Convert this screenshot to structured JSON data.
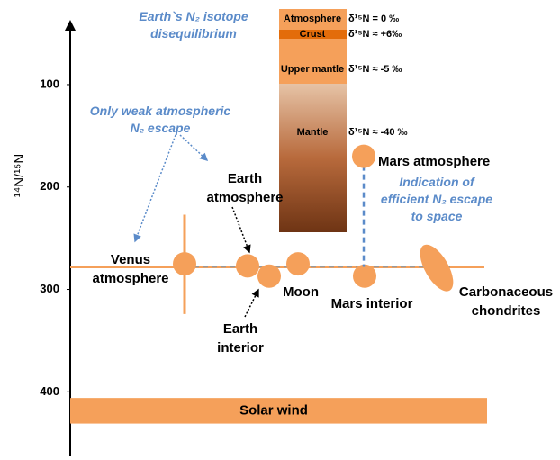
{
  "chart_data": {
    "type": "isotope-diagram",
    "y_label": "¹⁴N/¹⁵N",
    "ylim": [
      35,
      463
    ],
    "yticks": [
      100,
      200,
      300,
      400
    ],
    "reference": 278,
    "color": "#f5a05a",
    "points": [
      {
        "label": [
          "Venus",
          "atmosphere"
        ],
        "value": 275,
        "range": [
          227,
          324
        ]
      },
      {
        "label": [
          "Earth",
          "atmosphere"
        ],
        "value": 277
      },
      {
        "label": [
          "Earth",
          "interior"
        ],
        "value": 287
      },
      {
        "label": [
          "Moon"
        ],
        "value": 275
      },
      {
        "label": [
          "Mars interior"
        ],
        "value": 287
      },
      {
        "label": [
          "Mars atmosphere"
        ],
        "value": 170
      },
      {
        "label": [
          "Carbonaceous",
          "chondrites"
        ],
        "value": 279
      }
    ],
    "band": {
      "label": "Solar wind",
      "range": [
        406,
        431
      ]
    },
    "layers": [
      {
        "name": "Atmosphere",
        "label": "δ¹⁵N = 0 ‰"
      },
      {
        "name": "Crust",
        "label": "δ¹⁵N ≈ +6‰"
      },
      {
        "name": "Upper mantle",
        "label": "δ¹⁵N ≈ -5 ‰"
      },
      {
        "name": "Mantle",
        "label": "δ¹⁵N ≈ -40 ‰"
      }
    ],
    "annotations": [
      [
        "Earth`s N₂ isotope",
        "disequilibrium"
      ],
      [
        "Only weak atmospheric",
        "N₂ escape"
      ],
      [
        "Indication of",
        "efficient N₂ escape",
        "to space"
      ]
    ]
  }
}
